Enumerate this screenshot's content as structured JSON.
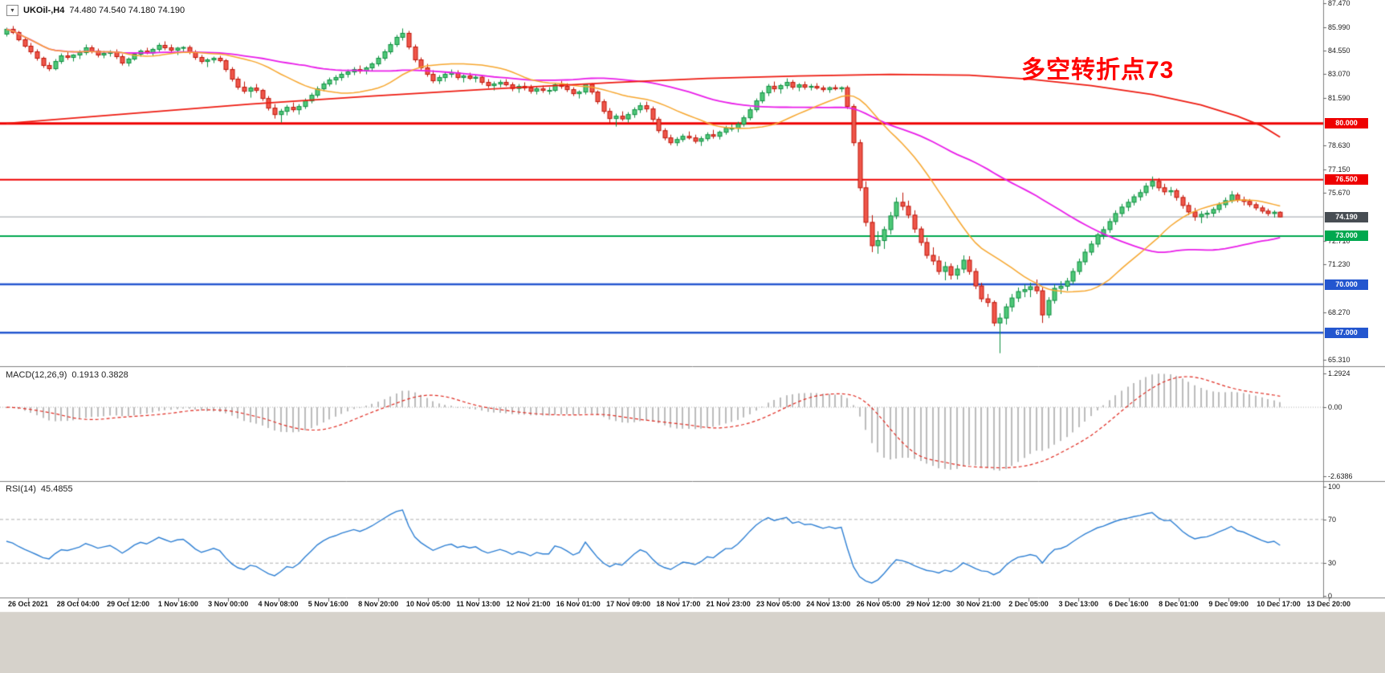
{
  "header": {
    "dropdown_icon": "▼",
    "symbol": "UKOil-,H4",
    "ohlc": "74.480 74.540 74.180 74.190"
  },
  "annotation": {
    "text": "多空转折点73",
    "color": "#ff0000"
  },
  "macd_panel": {
    "label": "MACD(12,26,9)",
    "values": "0.1913 0.3828",
    "axis_labels": [
      "1.2924",
      "0.00",
      "-2.6386"
    ]
  },
  "rsi_panel": {
    "label": "RSI(14)",
    "value": "45.4855",
    "axis_labels": [
      "100",
      "70",
      "30",
      "0"
    ]
  },
  "chart_data": {
    "type": "candlestick",
    "symbol": "UKOil",
    "timeframe": "H4",
    "current_price": 74.19,
    "y_ticks": [
      "87.470",
      "85.990",
      "84.550",
      "83.070",
      "81.590",
      "78.630",
      "77.150",
      "75.670",
      "72.710",
      "71.230",
      "68.270",
      "65.310"
    ],
    "x_labels": [
      "26 Oct 2021",
      "28 Oct 04:00",
      "29 Oct 12:00",
      "1 Nov 16:00",
      "3 Nov 00:00",
      "4 Nov 08:00",
      "5 Nov 16:00",
      "8 Nov 20:00",
      "10 Nov 05:00",
      "11 Nov 13:00",
      "12 Nov 21:00",
      "16 Nov 01:00",
      "17 Nov 09:00",
      "18 Nov 17:00",
      "21 Nov 23:00",
      "23 Nov 05:00",
      "24 Nov 13:00",
      "26 Nov 05:00",
      "29 Nov 12:00",
      "30 Nov 21:00",
      "2 Dec 05:00",
      "3 Dec 13:00",
      "6 Dec 16:00",
      "8 Dec 01:00",
      "9 Dec 09:00",
      "10 Dec 17:00",
      "13 Dec 20:00"
    ],
    "price_lines": [
      {
        "price": 80.0,
        "label": "80.000",
        "color": "#ee0000",
        "badge": "#ee0000",
        "width": 3
      },
      {
        "price": 76.5,
        "label": "76.500",
        "color": "#ee0000",
        "badge": "#ee0000",
        "width": 2
      },
      {
        "price": 74.19,
        "label": "74.190",
        "color": "#9aa0a6",
        "badge": "#474d53",
        "width": 1
      },
      {
        "price": 73.0,
        "label": "73.000",
        "color": "#00a84f",
        "badge": "#00a84f",
        "width": 2
      },
      {
        "price": 70.0,
        "label": "70.000",
        "color": "#2356cf",
        "badge": "#2356cf",
        "width": 2.5
      },
      {
        "price": 67.0,
        "label": "67.000",
        "color": "#2356cf",
        "badge": "#2356cf",
        "width": 2.5
      }
    ],
    "indicators": {
      "ma_fast_period": 20,
      "ma_mid_period": 50,
      "macd": [
        12,
        26,
        9
      ],
      "rsi": 14
    },
    "ma_slow_anchors": [
      [
        0,
        80.0
      ],
      [
        20,
        80.6
      ],
      [
        40,
        81.2
      ],
      [
        60,
        81.7
      ],
      [
        80,
        82.15
      ],
      [
        100,
        82.55
      ],
      [
        115,
        82.8
      ],
      [
        130,
        82.95
      ],
      [
        145,
        83.05
      ],
      [
        158,
        83.0
      ],
      [
        168,
        82.75
      ],
      [
        178,
        82.35
      ],
      [
        188,
        81.8
      ],
      [
        196,
        81.15
      ],
      [
        202,
        80.45
      ],
      [
        206,
        79.85
      ],
      [
        209,
        79.15
      ]
    ],
    "colors": {
      "up_fill": "#4fc878",
      "up_border": "#0e8f41",
      "down_fill": "#ef564a",
      "down_border": "#c01508",
      "ma_red": "#ee1c12",
      "ma_magenta": "#e91ee9",
      "ma_orange": "#f7a72f",
      "macd_hist": "#bcbcbc",
      "macd_signal": "#e02a20",
      "rsi_line": "#2f80d4"
    },
    "candles": [
      [
        85.55,
        85.95,
        85.4,
        85.85
      ],
      [
        85.85,
        86.05,
        85.55,
        85.65
      ],
      [
        85.65,
        85.75,
        85.1,
        85.2
      ],
      [
        85.2,
        85.35,
        84.7,
        84.8
      ],
      [
        84.8,
        85.0,
        84.3,
        84.45
      ],
      [
        84.45,
        84.6,
        83.9,
        84.05
      ],
      [
        84.05,
        84.15,
        83.45,
        83.6
      ],
      [
        83.6,
        83.8,
        83.25,
        83.4
      ],
      [
        83.4,
        84.0,
        83.3,
        83.85
      ],
      [
        83.85,
        84.35,
        83.7,
        84.2
      ],
      [
        84.2,
        84.45,
        83.95,
        84.1
      ],
      [
        84.1,
        84.3,
        83.85,
        84.25
      ],
      [
        84.25,
        84.55,
        84.0,
        84.4
      ],
      [
        84.4,
        84.9,
        84.25,
        84.7
      ],
      [
        84.7,
        84.85,
        84.35,
        84.5
      ],
      [
        84.5,
        84.65,
        84.1,
        84.25
      ],
      [
        84.25,
        84.5,
        84.05,
        84.35
      ],
      [
        84.35,
        84.55,
        84.15,
        84.45
      ],
      [
        84.45,
        84.6,
        84.0,
        84.15
      ],
      [
        84.15,
        84.3,
        83.6,
        83.75
      ],
      [
        83.75,
        84.1,
        83.55,
        84.0
      ],
      [
        84.0,
        84.4,
        83.9,
        84.3
      ],
      [
        84.3,
        84.6,
        84.15,
        84.5
      ],
      [
        84.5,
        84.7,
        84.3,
        84.38
      ],
      [
        84.38,
        84.7,
        84.2,
        84.6
      ],
      [
        84.6,
        85.0,
        84.45,
        84.85
      ],
      [
        84.85,
        85.1,
        84.55,
        84.7
      ],
      [
        84.7,
        84.9,
        84.4,
        84.55
      ],
      [
        84.55,
        84.75,
        84.25,
        84.68
      ],
      [
        84.68,
        84.8,
        84.4,
        84.72
      ],
      [
        84.72,
        84.85,
        84.3,
        84.45
      ],
      [
        84.45,
        84.55,
        83.95,
        84.1
      ],
      [
        84.1,
        84.25,
        83.7,
        83.85
      ],
      [
        83.85,
        84.05,
        83.5,
        83.95
      ],
      [
        83.95,
        84.15,
        83.75,
        84.05
      ],
      [
        84.05,
        84.2,
        83.8,
        83.9
      ],
      [
        83.9,
        84.0,
        83.2,
        83.35
      ],
      [
        83.35,
        83.5,
        82.6,
        82.75
      ],
      [
        82.75,
        82.9,
        82.1,
        82.25
      ],
      [
        82.25,
        82.6,
        81.85,
        82.0
      ],
      [
        82.0,
        82.3,
        81.6,
        82.2
      ],
      [
        82.2,
        82.45,
        81.9,
        82.05
      ],
      [
        82.05,
        82.15,
        81.4,
        81.55
      ],
      [
        81.55,
        81.7,
        80.8,
        80.95
      ],
      [
        80.95,
        81.2,
        80.3,
        80.55
      ],
      [
        80.55,
        80.9,
        80.05,
        80.75
      ],
      [
        80.75,
        81.15,
        80.5,
        81.0
      ],
      [
        81.0,
        81.3,
        80.7,
        80.85
      ],
      [
        80.85,
        81.2,
        80.55,
        81.05
      ],
      [
        81.05,
        81.55,
        80.9,
        81.4
      ],
      [
        81.4,
        81.9,
        81.25,
        81.75
      ],
      [
        81.75,
        82.3,
        81.6,
        82.15
      ],
      [
        82.15,
        82.6,
        82.0,
        82.45
      ],
      [
        82.45,
        82.85,
        82.3,
        82.7
      ],
      [
        82.7,
        83.0,
        82.4,
        82.85
      ],
      [
        82.85,
        83.2,
        82.65,
        83.05
      ],
      [
        83.05,
        83.35,
        82.85,
        83.2
      ],
      [
        83.2,
        83.5,
        83.0,
        83.35
      ],
      [
        83.35,
        83.6,
        83.1,
        83.25
      ],
      [
        83.25,
        83.55,
        83.05,
        83.45
      ],
      [
        83.45,
        83.8,
        83.25,
        83.7
      ],
      [
        83.7,
        84.2,
        83.55,
        84.05
      ],
      [
        84.05,
        84.6,
        83.9,
        84.45
      ],
      [
        84.45,
        85.05,
        84.3,
        84.9
      ],
      [
        84.9,
        85.5,
        84.75,
        85.35
      ],
      [
        85.35,
        85.9,
        85.15,
        85.6
      ],
      [
        85.6,
        85.75,
        84.6,
        84.75
      ],
      [
        84.75,
        84.9,
        83.8,
        83.95
      ],
      [
        83.95,
        84.1,
        83.3,
        83.45
      ],
      [
        83.45,
        83.7,
        82.9,
        83.05
      ],
      [
        83.05,
        83.3,
        82.5,
        82.65
      ],
      [
        82.65,
        83.0,
        82.45,
        82.85
      ],
      [
        82.85,
        83.2,
        82.6,
        83.05
      ],
      [
        83.05,
        83.35,
        82.85,
        83.15
      ],
      [
        83.15,
        83.3,
        82.7,
        82.85
      ],
      [
        82.85,
        83.05,
        82.55,
        82.95
      ],
      [
        82.95,
        83.15,
        82.7,
        82.8
      ],
      [
        82.8,
        83.0,
        82.55,
        82.87
      ],
      [
        82.87,
        83.0,
        82.4,
        82.55
      ],
      [
        82.55,
        82.75,
        82.2,
        82.35
      ],
      [
        82.35,
        82.6,
        82.05,
        82.45
      ],
      [
        82.45,
        82.7,
        82.25,
        82.55
      ],
      [
        82.55,
        82.75,
        82.3,
        82.4
      ],
      [
        82.4,
        82.55,
        82.0,
        82.17
      ],
      [
        82.17,
        82.45,
        81.9,
        82.3
      ],
      [
        82.3,
        82.55,
        82.05,
        82.2
      ],
      [
        82.2,
        82.4,
        81.85,
        82.0
      ],
      [
        82.0,
        82.3,
        81.8,
        82.15
      ],
      [
        82.15,
        82.35,
        81.9,
        82.05
      ],
      [
        82.05,
        82.25,
        81.8,
        82.05
      ],
      [
        82.05,
        82.5,
        81.95,
        82.4
      ],
      [
        82.4,
        82.65,
        82.15,
        82.3
      ],
      [
        82.3,
        82.5,
        81.95,
        82.1
      ],
      [
        82.1,
        82.25,
        81.7,
        81.85
      ],
      [
        81.85,
        82.05,
        81.55,
        81.95
      ],
      [
        81.95,
        82.45,
        81.8,
        82.43
      ],
      [
        82.43,
        82.5,
        81.8,
        81.95
      ],
      [
        81.95,
        82.05,
        81.2,
        81.35
      ],
      [
        81.35,
        81.5,
        80.6,
        80.75
      ],
      [
        80.75,
        80.95,
        80.0,
        80.3
      ],
      [
        80.3,
        80.6,
        79.8,
        80.45
      ],
      [
        80.45,
        80.75,
        80.15,
        80.28
      ],
      [
        80.28,
        80.7,
        80.05,
        80.55
      ],
      [
        80.55,
        81.0,
        80.35,
        80.85
      ],
      [
        80.85,
        81.3,
        80.65,
        81.1
      ],
      [
        81.1,
        81.35,
        80.7,
        80.9
      ],
      [
        80.9,
        81.05,
        80.1,
        80.25
      ],
      [
        80.25,
        80.4,
        79.4,
        79.55
      ],
      [
        79.55,
        79.7,
        78.95,
        79.1
      ],
      [
        79.1,
        79.3,
        78.65,
        78.8
      ],
      [
        78.8,
        79.15,
        78.6,
        79.0
      ],
      [
        79.0,
        79.35,
        78.85,
        79.2
      ],
      [
        79.2,
        79.5,
        79.0,
        79.1
      ],
      [
        79.1,
        79.3,
        78.75,
        78.89
      ],
      [
        78.89,
        79.2,
        78.6,
        79.05
      ],
      [
        79.05,
        79.45,
        78.9,
        79.3
      ],
      [
        79.3,
        79.6,
        79.05,
        79.2
      ],
      [
        79.2,
        79.55,
        79.0,
        79.45
      ],
      [
        79.45,
        79.85,
        79.3,
        79.7
      ],
      [
        79.7,
        79.95,
        79.5,
        79.7
      ],
      [
        79.7,
        80.1,
        79.45,
        79.95
      ],
      [
        79.95,
        80.5,
        79.8,
        80.35
      ],
      [
        80.35,
        81.0,
        80.2,
        80.85
      ],
      [
        80.85,
        81.55,
        80.7,
        81.4
      ],
      [
        81.4,
        82.05,
        81.25,
        81.9
      ],
      [
        81.9,
        82.45,
        81.7,
        82.31
      ],
      [
        82.31,
        82.6,
        81.95,
        82.15
      ],
      [
        82.15,
        82.45,
        81.85,
        82.35
      ],
      [
        82.35,
        82.8,
        82.15,
        82.55
      ],
      [
        82.55,
        82.7,
        82.1,
        82.25
      ],
      [
        82.25,
        82.5,
        82.0,
        82.4
      ],
      [
        82.4,
        82.6,
        82.1,
        82.25
      ],
      [
        82.25,
        82.45,
        82.05,
        82.3
      ],
      [
        82.3,
        82.5,
        82.1,
        82.2
      ],
      [
        82.2,
        82.35,
        81.95,
        82.1
      ],
      [
        82.1,
        82.3,
        81.9,
        82.22
      ],
      [
        82.22,
        82.4,
        82.05,
        82.15
      ],
      [
        82.15,
        82.3,
        81.95,
        82.22
      ],
      [
        82.22,
        82.35,
        80.9,
        81.05
      ],
      [
        81.05,
        81.2,
        78.6,
        78.8
      ],
      [
        78.8,
        79.0,
        75.8,
        76.0
      ],
      [
        76.0,
        76.4,
        73.6,
        73.85
      ],
      [
        73.85,
        74.3,
        72.0,
        72.4
      ],
      [
        72.4,
        73.3,
        71.9,
        72.72
      ],
      [
        72.72,
        73.6,
        72.2,
        73.4
      ],
      [
        73.4,
        74.5,
        73.1,
        74.25
      ],
      [
        74.25,
        75.4,
        74.05,
        75.1
      ],
      [
        75.1,
        75.7,
        74.6,
        74.85
      ],
      [
        74.85,
        75.2,
        74.1,
        74.3
      ],
      [
        74.3,
        74.6,
        73.2,
        73.44
      ],
      [
        73.44,
        73.6,
        72.4,
        72.6
      ],
      [
        72.6,
        72.9,
        71.6,
        71.8
      ],
      [
        71.8,
        72.3,
        71.2,
        71.45
      ],
      [
        71.45,
        71.75,
        70.6,
        70.8
      ],
      [
        70.8,
        71.4,
        70.25,
        71.1
      ],
      [
        71.1,
        71.3,
        70.3,
        70.57
      ],
      [
        70.57,
        71.2,
        70.3,
        70.95
      ],
      [
        70.95,
        71.8,
        70.7,
        71.5
      ],
      [
        71.5,
        71.75,
        70.6,
        70.8
      ],
      [
        70.8,
        71.0,
        69.7,
        69.9
      ],
      [
        69.9,
        70.1,
        68.9,
        69.1
      ],
      [
        69.1,
        69.4,
        68.6,
        68.87
      ],
      [
        68.87,
        69.0,
        67.4,
        67.6
      ],
      [
        67.6,
        68.2,
        65.72,
        67.9
      ],
      [
        67.9,
        68.8,
        67.5,
        68.6
      ],
      [
        68.6,
        69.4,
        68.3,
        69.15
      ],
      [
        69.15,
        69.8,
        68.9,
        69.55
      ],
      [
        69.55,
        70.0,
        69.2,
        69.67
      ],
      [
        69.67,
        70.1,
        69.2,
        69.85
      ],
      [
        69.85,
        70.3,
        69.4,
        69.6
      ],
      [
        69.6,
        69.8,
        67.6,
        68.1
      ],
      [
        68.1,
        69.2,
        67.9,
        69.0
      ],
      [
        69.0,
        70.0,
        68.8,
        69.75
      ],
      [
        69.75,
        70.2,
        69.4,
        69.88
      ],
      [
        69.88,
        70.4,
        69.6,
        70.2
      ],
      [
        70.2,
        71.0,
        70.0,
        70.8
      ],
      [
        70.8,
        71.6,
        70.6,
        71.4
      ],
      [
        71.4,
        72.2,
        71.2,
        72.0
      ],
      [
        72.0,
        72.7,
        71.8,
        72.5
      ],
      [
        72.5,
        73.2,
        72.3,
        73.08
      ],
      [
        73.08,
        73.6,
        72.8,
        73.4
      ],
      [
        73.4,
        74.1,
        73.2,
        73.9
      ],
      [
        73.9,
        74.6,
        73.7,
        74.4
      ],
      [
        74.4,
        75.0,
        74.2,
        74.8
      ],
      [
        74.8,
        75.3,
        74.55,
        75.1
      ],
      [
        75.1,
        75.6,
        74.9,
        75.44
      ],
      [
        75.44,
        75.9,
        75.2,
        75.7
      ],
      [
        75.7,
        76.3,
        75.5,
        76.1
      ],
      [
        76.1,
        76.7,
        75.9,
        76.4
      ],
      [
        76.4,
        76.6,
        75.8,
        76.0
      ],
      [
        76.0,
        76.25,
        75.55,
        75.75
      ],
      [
        75.75,
        76.05,
        75.5,
        75.82
      ],
      [
        75.82,
        75.95,
        75.2,
        75.4
      ],
      [
        75.4,
        75.55,
        74.7,
        74.9
      ],
      [
        74.9,
        75.1,
        74.3,
        74.5
      ],
      [
        74.5,
        74.75,
        73.95,
        74.2
      ],
      [
        74.2,
        74.55,
        73.8,
        74.35
      ],
      [
        74.35,
        74.6,
        74.1,
        74.42
      ],
      [
        74.42,
        74.8,
        74.2,
        74.65
      ],
      [
        74.65,
        75.1,
        74.45,
        74.95
      ],
      [
        74.95,
        75.4,
        74.75,
        75.2
      ],
      [
        75.2,
        75.8,
        75.05,
        75.55
      ],
      [
        75.55,
        75.7,
        75.1,
        75.25
      ],
      [
        75.25,
        75.45,
        74.9,
        75.15
      ],
      [
        75.15,
        75.3,
        74.8,
        74.95
      ],
      [
        74.95,
        75.1,
        74.6,
        74.75
      ],
      [
        74.75,
        74.9,
        74.4,
        74.55
      ],
      [
        74.55,
        74.7,
        74.25,
        74.4
      ],
      [
        74.4,
        74.6,
        74.15,
        74.48
      ],
      [
        74.48,
        74.54,
        74.18,
        74.19
      ]
    ]
  }
}
